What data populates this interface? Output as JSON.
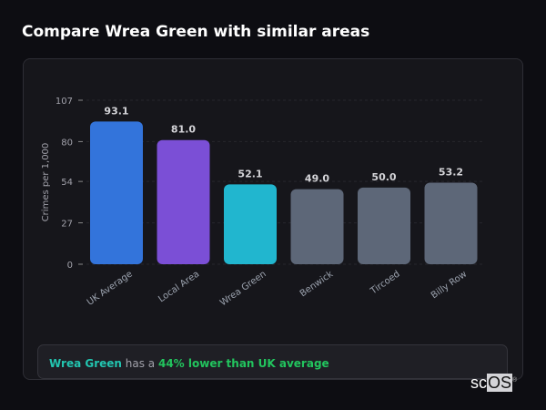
{
  "title": "Compare Wrea Green with similar areas",
  "chart_data": {
    "type": "bar",
    "categories": [
      "UK Average",
      "Local Area",
      "Wrea Green",
      "Benwick",
      "Tircoed",
      "Billy Row"
    ],
    "values": [
      93.1,
      81.0,
      52.1,
      49.0,
      50.0,
      53.2
    ],
    "value_labels": [
      "93.1",
      "81.0",
      "52.1",
      "49.0",
      "50.0",
      "53.2"
    ],
    "colors": [
      "#3374db",
      "#7b4fd6",
      "#21b6cf",
      "#5d6778",
      "#5d6778",
      "#5d6778"
    ],
    "ylabel": "Crimes per 1,000",
    "xlabel": "",
    "ylim": [
      0,
      107
    ],
    "yticks": [
      0,
      27,
      54,
      80,
      107
    ],
    "grid": true
  },
  "summary": {
    "area": "Wrea Green",
    "middle": " has a ",
    "comparison": "44% lower than UK average"
  },
  "logo": {
    "text_a": "sc",
    "text_b": "OS",
    "mark": "®"
  }
}
